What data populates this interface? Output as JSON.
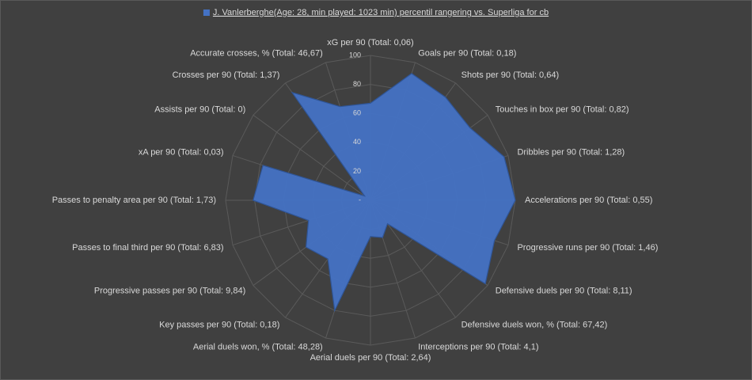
{
  "chart_data": {
    "type": "radar",
    "categories": [
      "xG per 90 (Total: 0,06)",
      "Goals per 90 (Total: 0,18)",
      "Shots per 90 (Total: 0,64)",
      "Touches in box per 90 (Total: 0,82)",
      "Dribbles per 90 (Total: 1,28)",
      "Accelerations per 90 (Total: 0,55)",
      "Progressive runs per 90 (Total: 1,46)",
      "Defensive duels per 90 (Total: 8,11)",
      "Defensive duels won, % (Total: 67,42)",
      "Interceptions per 90 (Total: 4,1)",
      "Aerial duels per 90 (Total: 2,64)",
      "Aerial duels won, % (Total: 48,28)",
      "Key passes per 90 (Total: 0,18)",
      "Progressive passes per 90 (Total: 9,84)",
      "Passes to final third per 90 (Total: 6,83)",
      "Passes to penalty area per 90 (Total: 1,73)",
      "xA per 90 (Total: 0,03)",
      "Assists per 90 (Total: 0)",
      "Crosses per 90 (Total: 1,37)",
      "Accurate crosses, % (Total: 46,67)"
    ],
    "series": [
      {
        "name": "J. Vanlerberghe(Age: 28, min played: 1023 min) percentil rangering vs. Superliga for cb",
        "color": "#4472c4",
        "values": [
          67,
          92,
          88,
          85,
          97,
          100,
          90,
          98,
          20,
          27,
          25,
          80,
          50,
          55,
          45,
          81,
          78,
          5,
          92,
          68
        ]
      }
    ],
    "ylim": [
      0,
      100
    ],
    "yticks": [
      {
        "value": 0,
        "label": "-"
      },
      20,
      40,
      60,
      80,
      100
    ],
    "grid": true
  }
}
